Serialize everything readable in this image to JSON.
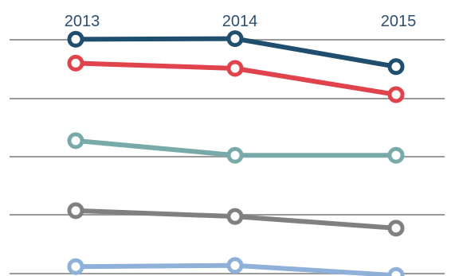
{
  "chart_data": {
    "type": "line",
    "x": [
      "2013",
      "2014",
      "2015"
    ],
    "ylim": [
      0,
      5
    ],
    "grid": true,
    "series": [
      {
        "color": "#1f4e6e",
        "values": [
          4.02,
          4.03,
          3.55
        ]
      },
      {
        "color": "#e0434c",
        "values": [
          3.61,
          3.52,
          3.07
        ]
      },
      {
        "color": "#78aaa9",
        "values": [
          2.28,
          2.03,
          2.03
        ]
      },
      {
        "color": "#808080",
        "values": [
          1.08,
          0.98,
          0.78
        ]
      },
      {
        "color": "#8fb0d8",
        "values": [
          0.12,
          0.14,
          -0.03
        ]
      }
    ]
  }
}
